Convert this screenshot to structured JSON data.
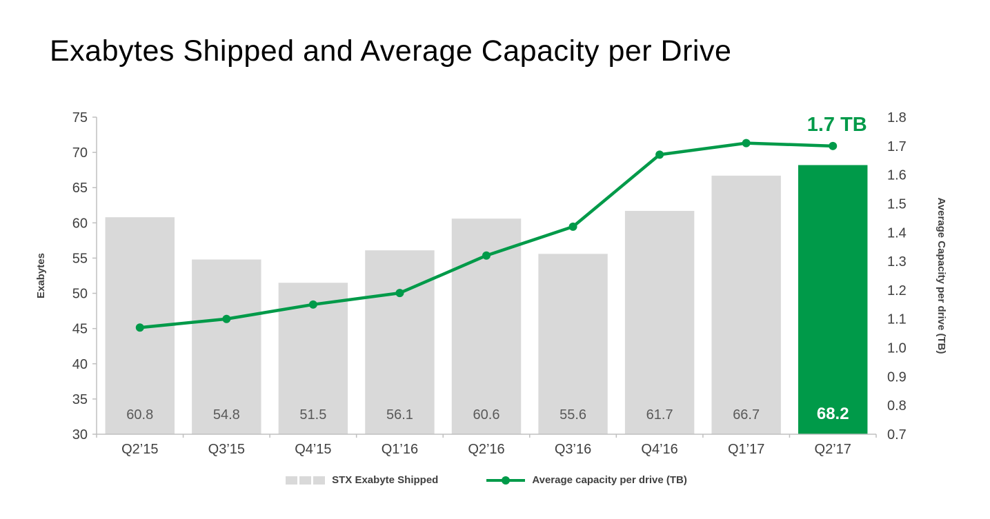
{
  "title": "Exabytes Shipped and Average Capacity per Drive",
  "annotation": "1.7 TB",
  "colors": {
    "bar": "#d9d9d9",
    "highlight": "#009a49",
    "line": "#009a49",
    "axis_line": "#bfbfbf",
    "axis_text": "#404040",
    "bar_label": "#595959",
    "highlight_label": "#ffffff",
    "annotation": "#009a49",
    "title_text": "#000000"
  },
  "legend": [
    {
      "label": "STX Exabyte Shipped"
    },
    {
      "label": "Average capacity per drive (TB)"
    }
  ],
  "chart_data": {
    "type": "bar",
    "subtype": "bar+line combo, dual axis",
    "categories": [
      "Q2’15",
      "Q3’15",
      "Q4’15",
      "Q1’16",
      "Q2’16",
      "Q3’16",
      "Q4’16",
      "Q1’17",
      "Q2’17"
    ],
    "series": [
      {
        "name": "STX Exabyte Shipped",
        "type": "bar",
        "axis": "left",
        "values": [
          60.8,
          54.8,
          51.5,
          56.1,
          60.6,
          55.6,
          61.7,
          66.7,
          68.2
        ],
        "highlight_index": 8
      },
      {
        "name": "Average capacity per drive (TB)",
        "type": "line",
        "axis": "right",
        "values": [
          1.07,
          1.1,
          1.15,
          1.19,
          1.32,
          1.42,
          1.67,
          1.71,
          1.7
        ]
      }
    ],
    "left_axis": {
      "label": "Exabytes",
      "min": 30,
      "max": 75,
      "ticks": [
        30,
        35,
        40,
        45,
        50,
        55,
        60,
        65,
        70,
        75
      ]
    },
    "right_axis": {
      "label": "Average Capacity per drive (TB)",
      "min": 0.7,
      "max": 1.8,
      "ticks": [
        0.7,
        0.8,
        0.9,
        1.0,
        1.1,
        1.2,
        1.3,
        1.4,
        1.5,
        1.6,
        1.7,
        1.8
      ]
    },
    "grid": false,
    "legend_position": "bottom",
    "annotation": {
      "text": "1.7 TB",
      "attached_to": "last line point"
    }
  }
}
